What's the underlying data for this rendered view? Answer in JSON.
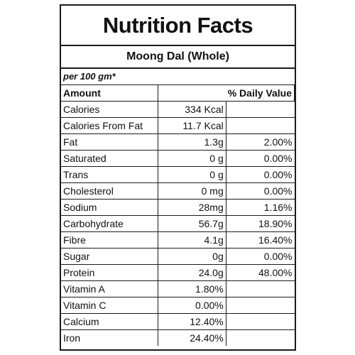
{
  "label": {
    "title": "Nutrition Facts",
    "product": "Moong Dal (Whole)",
    "serving": "per 100 gm*",
    "header": {
      "amount": "Amount",
      "daily_value": "% Daily Value"
    },
    "rows": [
      {
        "name": "Calories",
        "amount": "334 Kcal",
        "dv": ""
      },
      {
        "name": "Calories From Fat",
        "amount": "11.7 Kcal",
        "dv": ""
      },
      {
        "name": "Fat",
        "amount": "1.3g",
        "dv": "2.00%"
      },
      {
        "name": "Saturated",
        "amount": "0 g",
        "dv": "0.00%"
      },
      {
        "name": "Trans",
        "amount": "0 g",
        "dv": "0.00%"
      },
      {
        "name": "Cholesterol",
        "amount": "0 mg",
        "dv": "0.00%"
      },
      {
        "name": "Sodium",
        "amount": "28mg",
        "dv": "1.16%"
      },
      {
        "name": "Carbohydrate",
        "amount": "56.7g",
        "dv": "18.90%"
      },
      {
        "name": "Fibre",
        "amount": "4.1g",
        "dv": "16.40%"
      },
      {
        "name": "Sugar",
        "amount": "0g",
        "dv": "0.00%"
      },
      {
        "name": "Protein",
        "amount": "24.0g",
        "dv": "48.00%"
      },
      {
        "name": "Vitamin A",
        "amount": "1.80%",
        "dv": ""
      },
      {
        "name": "Vitamin C",
        "amount": "0.00%",
        "dv": ""
      },
      {
        "name": "Calcium",
        "amount": "12.40%",
        "dv": ""
      },
      {
        "name": "Iron",
        "amount": "24.40%",
        "dv": ""
      }
    ]
  }
}
